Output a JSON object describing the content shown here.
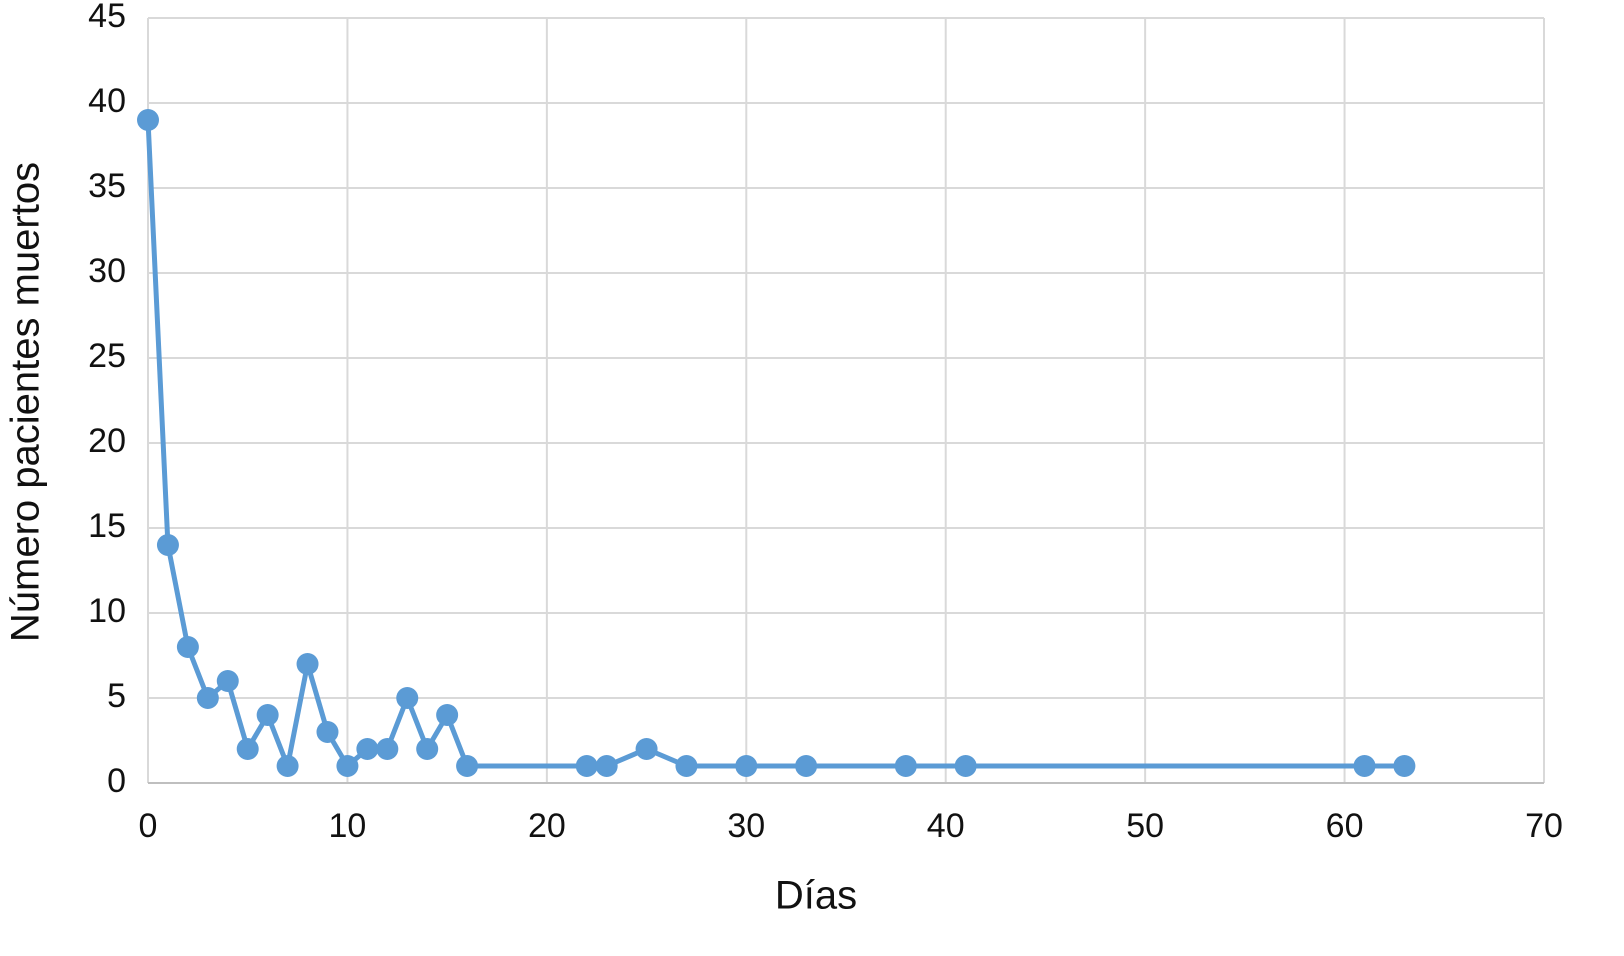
{
  "chart_data": {
    "type": "line",
    "x": [
      0,
      1,
      2,
      3,
      4,
      5,
      6,
      7,
      8,
      9,
      10,
      11,
      12,
      13,
      14,
      15,
      16,
      22,
      23,
      25,
      27,
      30,
      33,
      38,
      41,
      61,
      63
    ],
    "values": [
      39,
      14,
      8,
      5,
      6,
      2,
      4,
      1,
      7,
      3,
      1,
      2,
      2,
      5,
      2,
      4,
      1,
      1,
      1,
      2,
      1,
      1,
      1,
      1,
      1,
      1,
      1
    ],
    "color": "#5b9bd5",
    "xlabel": "Días",
    "ylabel": "Número pacientes muertos",
    "xlim": [
      0,
      70
    ],
    "xticks": [
      0,
      10,
      20,
      30,
      40,
      50,
      60,
      70
    ],
    "ylim": [
      0,
      45
    ],
    "yticks": [
      0,
      5,
      10,
      15,
      20,
      25,
      30,
      35,
      40,
      45
    ],
    "grid": true
  }
}
